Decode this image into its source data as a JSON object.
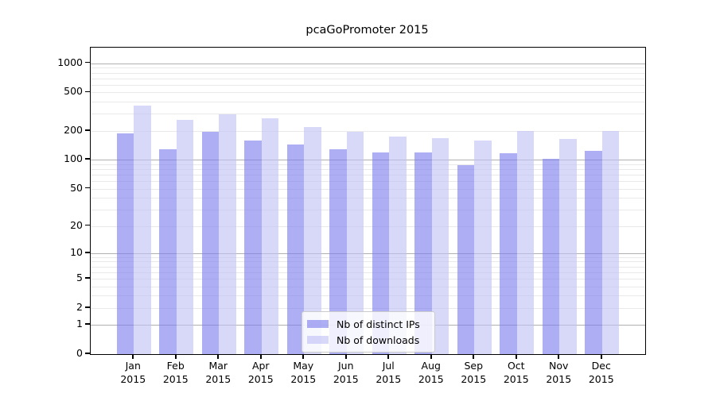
{
  "title": "pcaGoPromoter 2015",
  "chart_data": {
    "type": "bar",
    "title": "pcaGoPromoter 2015",
    "xlabel": "",
    "ylabel": "",
    "yscale": "log1p",
    "ylim": [
      0,
      1450
    ],
    "grid": true,
    "legend_position": "bottom-center",
    "y_ticks": [
      0,
      1,
      2,
      5,
      10,
      20,
      50,
      100,
      200,
      500,
      1000
    ],
    "categories": [
      "Jan 2015",
      "Feb 2015",
      "Mar 2015",
      "Apr 2015",
      "May 2015",
      "Jun 2015",
      "Jul 2015",
      "Aug 2015",
      "Sep 2015",
      "Oct 2015",
      "Nov 2015",
      "Dec 2015"
    ],
    "series": [
      {
        "name": "Nb of distinct IPs",
        "color": "#7c7cee",
        "values": [
          190,
          130,
          195,
          160,
          145,
          130,
          120,
          120,
          88,
          117,
          102,
          123
        ]
      },
      {
        "name": "Nb of downloads",
        "color": "#c0c0f6",
        "values": [
          365,
          260,
          295,
          270,
          220,
          197,
          176,
          167,
          160,
          200,
          165,
          200
        ]
      }
    ]
  },
  "colors": {
    "background": "#ffffff",
    "axis": "#000000",
    "major_gridline": "#b0b0b0",
    "minor_gridline": "#e9e9e9",
    "series_dark": "#7c7cee",
    "series_light": "#c0c0f6"
  }
}
